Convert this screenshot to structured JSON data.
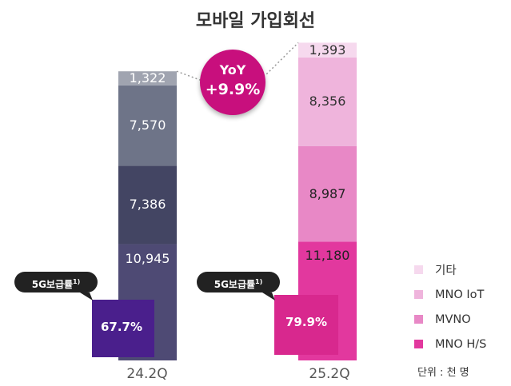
{
  "title": "모바일 가입회선",
  "unit_label": "단위 : 천 명",
  "yoy": {
    "line1": "YoY",
    "line2": "+9.9%"
  },
  "rate_badge_label": "5G보급률",
  "rate_badge_sup": "1)",
  "rates": [
    "67.7%",
    "79.9%"
  ],
  "chart_data": {
    "type": "bar",
    "stacked": true,
    "categories": [
      "24.2Q",
      "25.2Q"
    ],
    "series": [
      {
        "name": "MNO H/S",
        "values": [
          10945,
          11180
        ],
        "labels": [
          "10,945",
          "11,180"
        ]
      },
      {
        "name": "MVNO",
        "values": [
          7386,
          8987
        ],
        "labels": [
          "7,386",
          "8,987"
        ]
      },
      {
        "name": "MNO IoT",
        "values": [
          7570,
          8356
        ],
        "labels": [
          "7,570",
          "8,356"
        ]
      },
      {
        "name": "기타",
        "values": [
          1322,
          1393
        ],
        "labels": [
          "1,322",
          "1,393"
        ]
      }
    ],
    "colors": {
      "24.2Q": [
        "#4e4a74",
        "#434563",
        "#6e7488",
        "#a0a4b0"
      ],
      "25.2Q": [
        "#e2389e",
        "#e888c6",
        "#efb4dc",
        "#f6d9ee"
      ]
    },
    "label_colors": {
      "24.2Q": [
        "#ffffff",
        "#ffffff",
        "#ffffff",
        "#ffffff"
      ],
      "25.2Q": [
        "#222222",
        "#222222",
        "#333333",
        "#333333"
      ]
    },
    "legend_colors": [
      "#f6d9ee",
      "#efb4dc",
      "#e888c6",
      "#e2389e"
    ],
    "legend_order": [
      "기타",
      "MNO IoT",
      "MVNO",
      "MNO H/S"
    ]
  }
}
